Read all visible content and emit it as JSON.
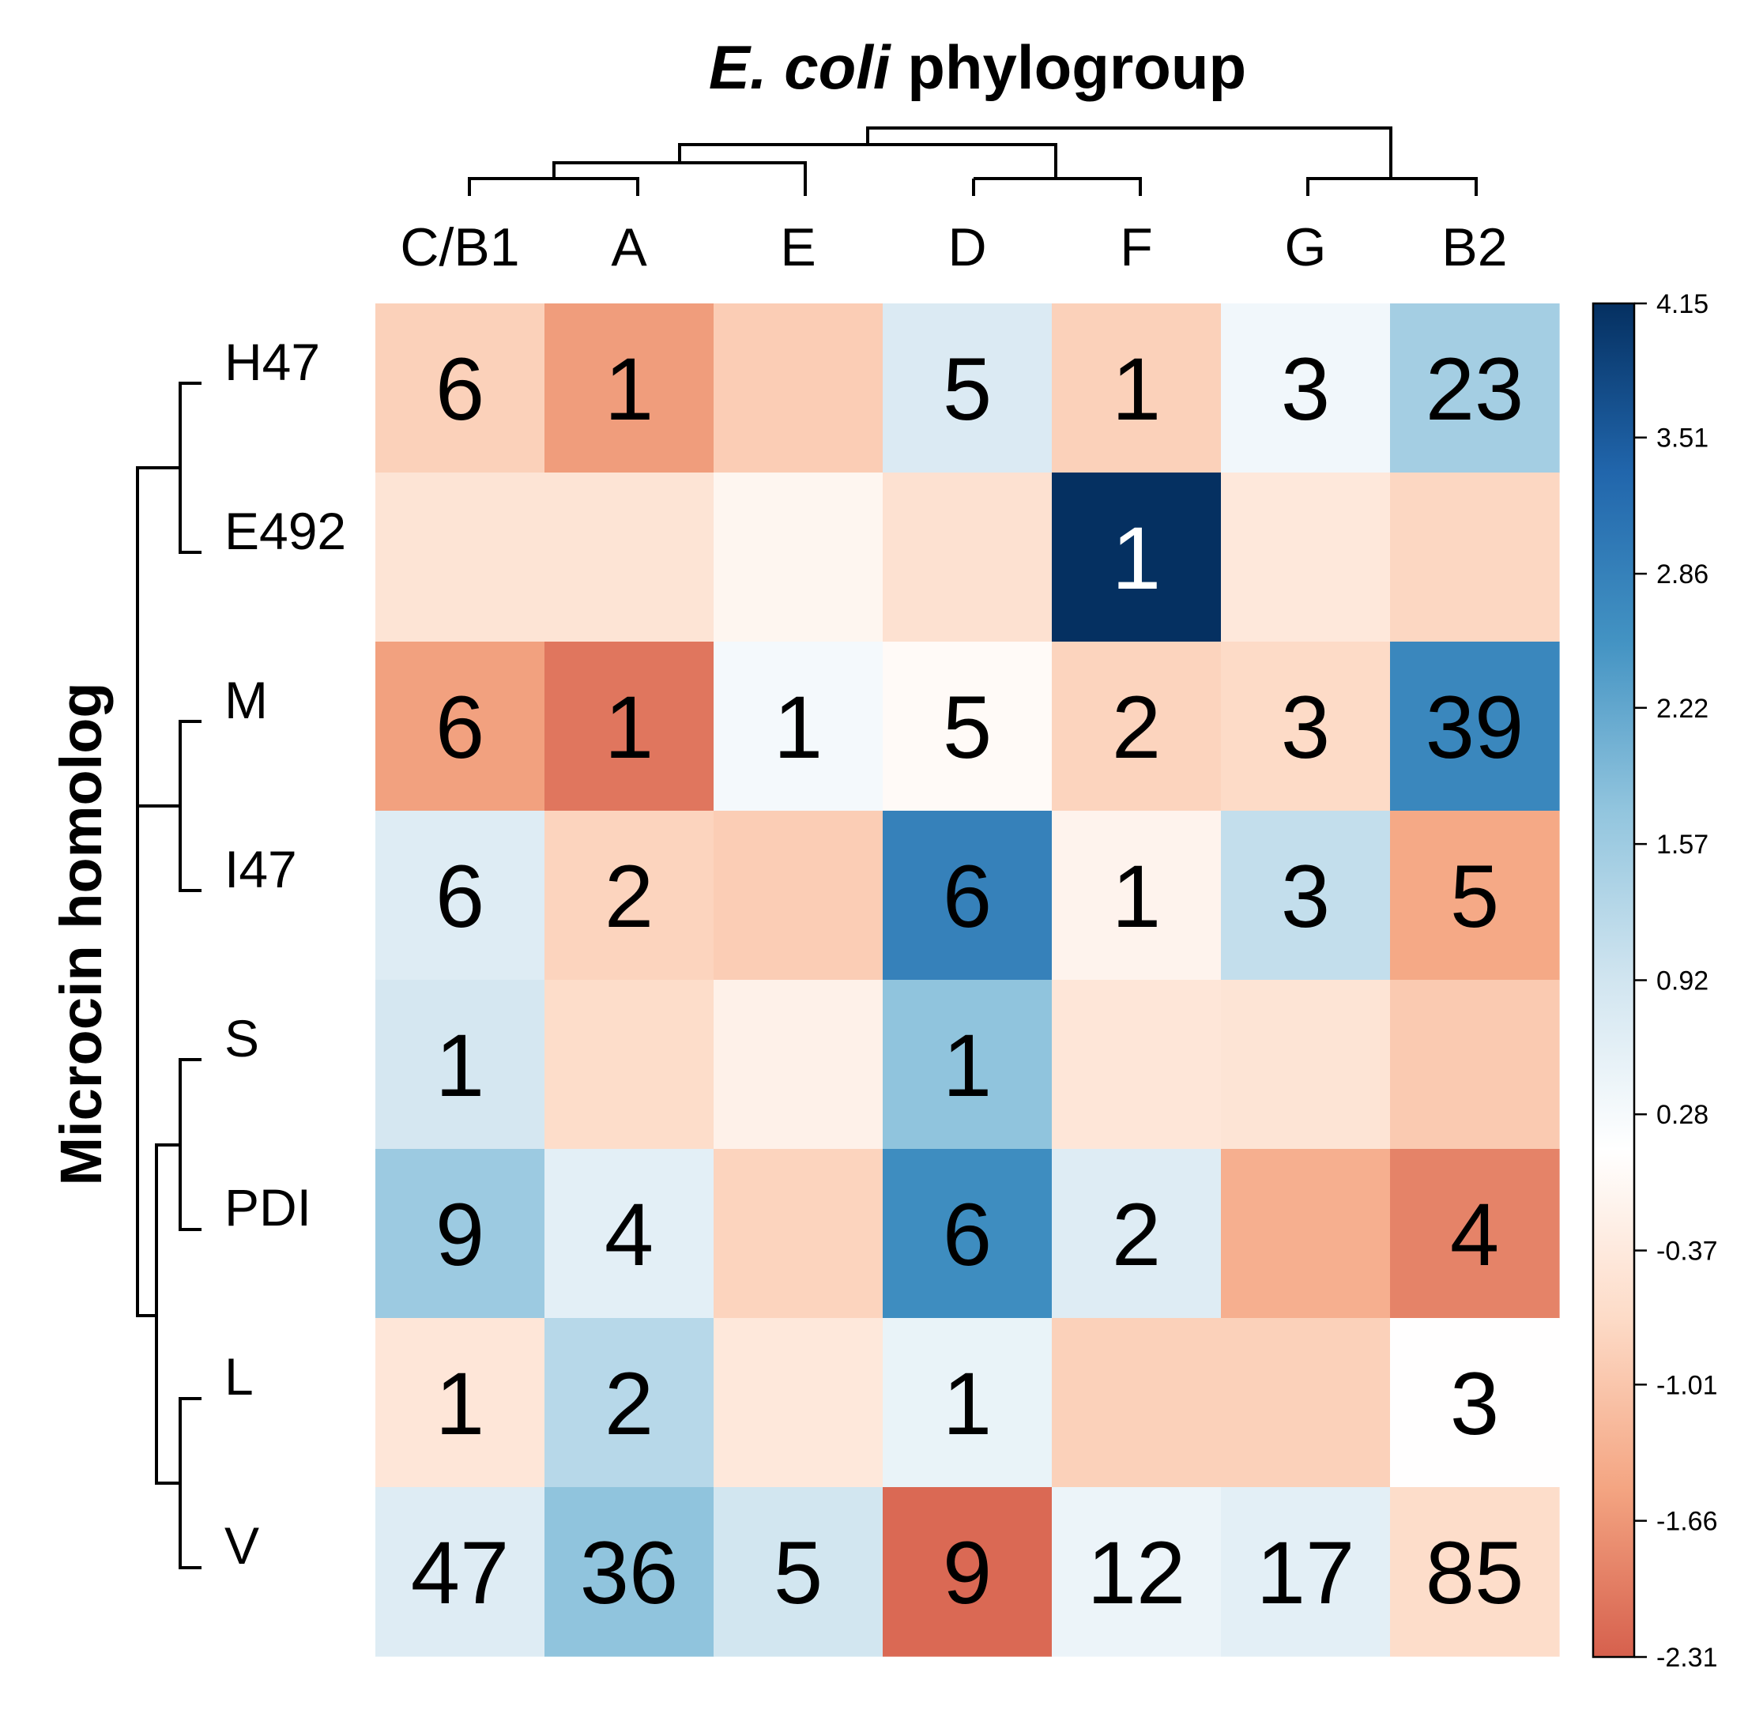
{
  "chart_data": {
    "type": "heatmap",
    "title_italic": "E. coli",
    "title_rest": " phylogroup",
    "ylabel": "Microcin homolog",
    "columns": [
      "C/B1",
      "A",
      "E",
      "D",
      "F",
      "G",
      "B2"
    ],
    "rows": [
      "H47",
      "E492",
      "M",
      "I47",
      "S",
      "PDI",
      "L",
      "V"
    ],
    "labels": [
      [
        "6",
        "1",
        "",
        "5",
        "1",
        "3",
        "23"
      ],
      [
        "",
        "",
        "",
        "",
        "1",
        "",
        ""
      ],
      [
        "6",
        "1",
        "1",
        "5",
        "2",
        "3",
        "39"
      ],
      [
        "6",
        "2",
        "",
        "6",
        "1",
        "3",
        "5"
      ],
      [
        "1",
        "",
        "",
        "1",
        "",
        "",
        ""
      ],
      [
        "9",
        "4",
        "",
        "6",
        "2",
        "",
        "4"
      ],
      [
        "1",
        "2",
        "",
        "1",
        "",
        "",
        "3"
      ],
      [
        "47",
        "36",
        "5",
        "9",
        "12",
        "17",
        "85"
      ]
    ],
    "values": [
      [
        -0.85,
        -1.6,
        -0.9,
        0.75,
        -0.85,
        0.35,
        1.5
      ],
      [
        -0.5,
        -0.5,
        -0.1,
        -0.55,
        4.15,
        -0.4,
        -0.75
      ],
      [
        -1.55,
        -2.05,
        0.3,
        0.0,
        -0.8,
        -0.7,
        2.75
      ],
      [
        0.7,
        -0.8,
        -0.9,
        2.85,
        -0.15,
        1.1,
        -1.45
      ],
      [
        0.85,
        -0.65,
        -0.2,
        1.75,
        -0.45,
        -0.5,
        -0.95
      ],
      [
        1.6,
        0.6,
        -0.8,
        2.65,
        0.7,
        -1.35,
        -1.9
      ],
      [
        -0.45,
        1.25,
        -0.4,
        0.5,
        -0.85,
        -0.85,
        0.1
      ],
      [
        0.7,
        1.75,
        0.9,
        -2.2,
        0.45,
        0.6,
        -0.65
      ]
    ],
    "colorbar": {
      "range": [
        -2.31,
        4.15
      ],
      "ticks": [
        "4.15",
        "3.51",
        "2.86",
        "2.22",
        "1.57",
        "0.92",
        "0.28",
        "-0.37",
        "-1.01",
        "-1.66",
        "-2.31"
      ],
      "colors_low_to_high": [
        "#d6604d",
        "#f4a582",
        "#fddbc7",
        "#ffffff",
        "#d1e5f0",
        "#92c5de",
        "#4393c3",
        "#2166ac",
        "#053061"
      ]
    },
    "column_dendrogram": "(((C/B1,A),E),(D,F)),(G,B2)",
    "row_dendrogram": "((H47,E492),(M,I47)),((S,PDI),(L,V))"
  }
}
